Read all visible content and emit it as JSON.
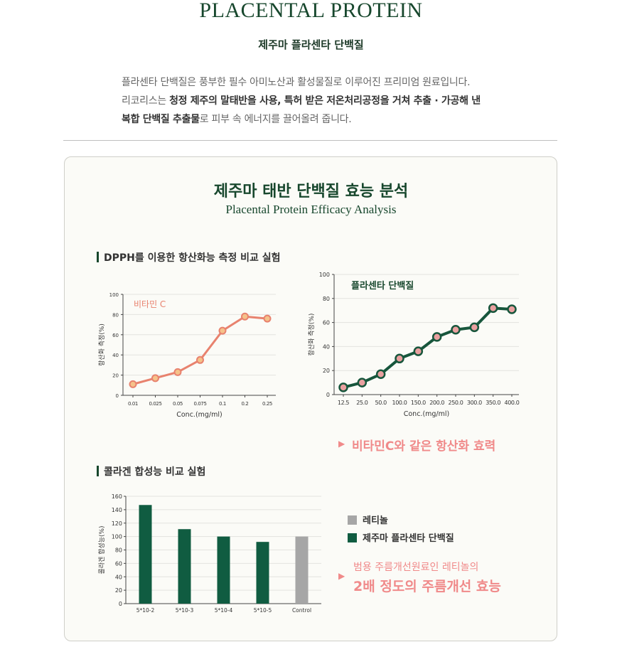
{
  "header": {
    "title": "PLACENTAL PROTEIN",
    "subtitle": "제주마 플라센타 단백질"
  },
  "intro": {
    "l1": "플라센타 단백질은 풍부한 필수 아미노산과 활성물질로 이루어진 프리미엄 원료입니다.",
    "l2a": "리코리스는 ",
    "l2b": "청정 제주의 말태반을 사용, 특허 받은 저온처리공정을 거쳐 추출 · 가공해 낸",
    "l3a": "복합 단백질 추출물",
    "l3b": "로 피부 속 에너지를 끌어올려 줍니다."
  },
  "panel": {
    "title": "제주마 태반 단백질 효능 분석",
    "subtitle": "Placental Protein Efficacy Analysis",
    "section1": "DPPH를 이용한 항산화능 측정 비교 실험",
    "section2": "콜라겐 합성능 비교 실험",
    "callout1": "비타민C와 같은 항산화 효력",
    "callout2_line1": "범용 주름개선원료인 레티놀의",
    "callout2_line2": "2배 정도의 주름개선 효능",
    "legend": {
      "retinol": "레티놀",
      "placenta": "제주마 플라센타 단백질"
    }
  },
  "colors": {
    "brand_green": "#17472d",
    "bar_green": "#105c41",
    "bar_gray": "#a6a6a6",
    "vitc": "#e8826e",
    "callout": "#f08a8a"
  },
  "chart_data": [
    {
      "type": "line",
      "series_label": "비타민 C",
      "xlabel": "Conc.(mg/ml)",
      "ylabel": "항산화 측정(%)",
      "categories": [
        "0.01",
        "0.025",
        "0.05",
        "0.075",
        "0.1",
        "0.2",
        "0.25"
      ],
      "values": [
        11,
        17,
        23,
        35,
        64,
        78,
        76
      ],
      "yticks": [
        "0",
        "20",
        "40",
        "60",
        "80",
        "100"
      ],
      "ylim": [
        0,
        100
      ]
    },
    {
      "type": "line",
      "series_label": "플라센타 단백질",
      "xlabel": "Conc.(mg/ml)",
      "ylabel": "항산화 측정(%)",
      "categories": [
        "12.5",
        "25.0",
        "50.0",
        "100.0",
        "150.0",
        "200.0",
        "250.0",
        "300.0",
        "350.0",
        "400.0"
      ],
      "values": [
        6,
        10,
        17,
        30,
        36,
        48,
        54,
        56,
        72,
        71
      ],
      "yticks": [
        "0",
        "20",
        "40",
        "60",
        "80",
        "100"
      ],
      "ylim": [
        0,
        100
      ]
    },
    {
      "type": "bar",
      "ylabel": "콜라겐 합성능(%)",
      "categories": [
        "5*10-2",
        "5*10-3",
        "5*10-4",
        "5*10-5",
        "Control"
      ],
      "values": [
        147,
        111,
        100,
        92,
        100
      ],
      "series": [
        {
          "name": "제주마 플라센타 단백질",
          "values": [
            147,
            111,
            100,
            92,
            null
          ]
        },
        {
          "name": "레티놀",
          "values": [
            null,
            null,
            null,
            null,
            100
          ]
        }
      ],
      "yticks": [
        "0",
        "20",
        "40",
        "60",
        "80",
        "100",
        "120",
        "140",
        "160"
      ],
      "ylim": [
        0,
        160
      ]
    }
  ]
}
